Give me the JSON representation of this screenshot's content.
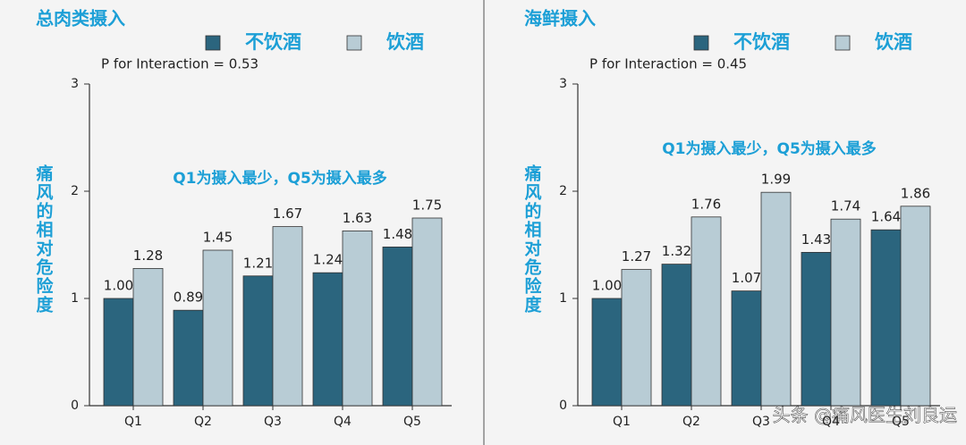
{
  "chart_data": [
    {
      "type": "bar",
      "title": "总肉类摄入",
      "annotation": "P for Interaction = 0.53",
      "note": "Q1为摄入最少，Q5为摄入最多",
      "ylabel": "痛风的相对危险度",
      "categories": [
        "Q1",
        "Q2",
        "Q3",
        "Q4",
        "Q5"
      ],
      "series": [
        {
          "name": "不饮酒",
          "color": "#2b657e",
          "values": [
            1,
            0.89,
            1.21,
            1.24,
            1.48
          ],
          "value_labels": [
            "1.00",
            "0.89",
            "1.21",
            "1.24",
            "1.48"
          ]
        },
        {
          "name": "饮酒",
          "color": "#b8ccd5",
          "values": [
            1.28,
            1.45,
            1.67,
            1.63,
            1.75
          ],
          "value_labels": [
            "1.28",
            "1.45",
            "1.67",
            "1.63",
            "1.75"
          ]
        }
      ],
      "ylim": [
        0,
        3
      ],
      "yticks": [
        0,
        1,
        2,
        3
      ]
    },
    {
      "type": "bar",
      "title": "海鲜摄入",
      "annotation": "P for Interaction = 0.45",
      "note": "Q1为摄入最少，Q5为摄入最多",
      "ylabel": "痛风的相对危险度",
      "categories": [
        "Q1",
        "Q2",
        "Q3",
        "Q4",
        "Q5"
      ],
      "series": [
        {
          "name": "不饮酒",
          "color": "#2b657e",
          "values": [
            1,
            1.32,
            1.07,
            1.43,
            1.64
          ],
          "value_labels": [
            "1.00",
            "1.32",
            "1.07",
            "1.43",
            "1.64"
          ]
        },
        {
          "name": "饮酒",
          "color": "#b8ccd5",
          "values": [
            1.27,
            1.76,
            1.99,
            1.74,
            1.86
          ],
          "value_labels": [
            "1.27",
            "1.76",
            "1.99",
            "1.74",
            "1.86"
          ]
        }
      ],
      "ylim": [
        0,
        3
      ],
      "yticks": [
        0,
        1,
        2,
        3
      ]
    }
  ],
  "watermark": "头条 @痛风医生刘良运"
}
